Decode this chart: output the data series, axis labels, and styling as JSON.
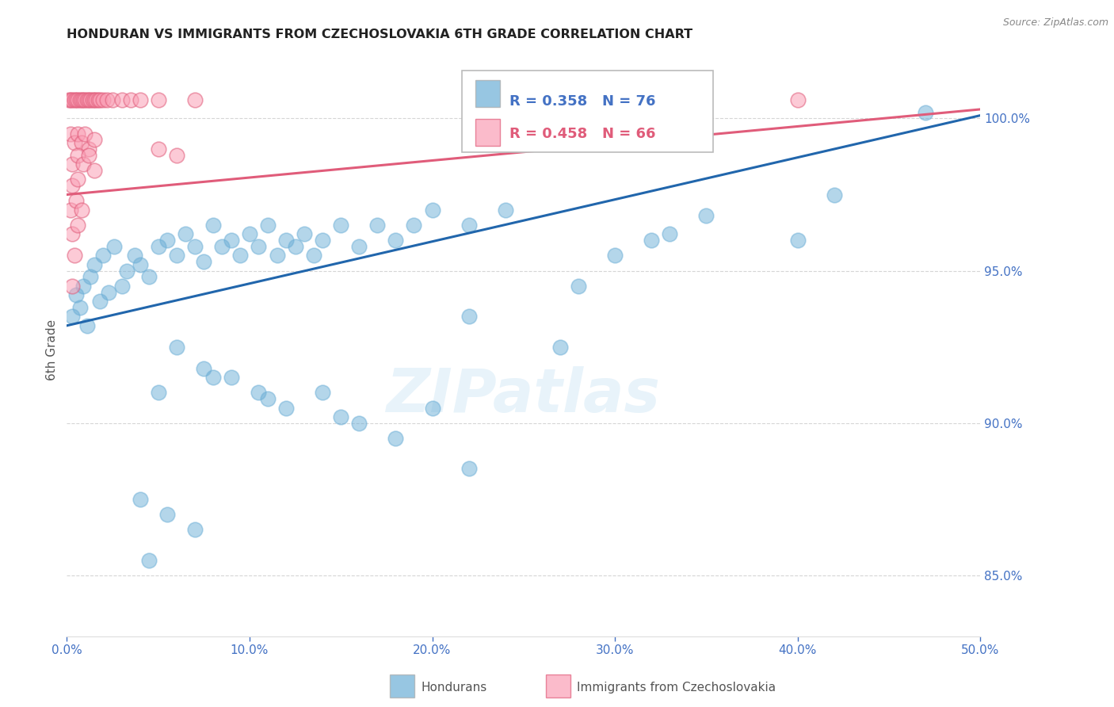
{
  "title": "HONDURAN VS IMMIGRANTS FROM CZECHOSLOVAKIA 6TH GRADE CORRELATION CHART",
  "source": "Source: ZipAtlas.com",
  "ylabel": "6th Grade",
  "watermark": "ZIPatlas",
  "legend_blue_label": "Hondurans",
  "legend_pink_label": "Immigrants from Czechoslovakia",
  "blue_R": 0.358,
  "blue_N": 76,
  "pink_R": 0.458,
  "pink_N": 66,
  "xmin": 0.0,
  "xmax": 50.0,
  "ymin": 83.0,
  "ymax": 101.8,
  "yticks": [
    85.0,
    90.0,
    95.0,
    100.0
  ],
  "xticks": [
    0.0,
    10.0,
    20.0,
    30.0,
    40.0,
    50.0
  ],
  "blue_trend_x": [
    0.0,
    50.0
  ],
  "blue_trend_y": [
    93.2,
    100.1
  ],
  "pink_trend_x": [
    0.0,
    50.0
  ],
  "pink_trend_y": [
    97.5,
    100.3
  ],
  "blue_color": "#6baed6",
  "pink_color": "#fa9fb5",
  "blue_line_color": "#2166ac",
  "pink_line_color": "#e05c7a",
  "blue_dots": [
    [
      0.3,
      93.5
    ],
    [
      0.5,
      94.2
    ],
    [
      0.7,
      93.8
    ],
    [
      0.9,
      94.5
    ],
    [
      1.1,
      93.2
    ],
    [
      1.3,
      94.8
    ],
    [
      1.5,
      95.2
    ],
    [
      1.8,
      94.0
    ],
    [
      2.0,
      95.5
    ],
    [
      2.3,
      94.3
    ],
    [
      2.6,
      95.8
    ],
    [
      3.0,
      94.5
    ],
    [
      3.3,
      95.0
    ],
    [
      3.7,
      95.5
    ],
    [
      4.0,
      95.2
    ],
    [
      4.5,
      94.8
    ],
    [
      5.0,
      95.8
    ],
    [
      5.5,
      96.0
    ],
    [
      6.0,
      95.5
    ],
    [
      6.5,
      96.2
    ],
    [
      7.0,
      95.8
    ],
    [
      7.5,
      95.3
    ],
    [
      8.0,
      96.5
    ],
    [
      8.5,
      95.8
    ],
    [
      9.0,
      96.0
    ],
    [
      9.5,
      95.5
    ],
    [
      10.0,
      96.2
    ],
    [
      10.5,
      95.8
    ],
    [
      11.0,
      96.5
    ],
    [
      11.5,
      95.5
    ],
    [
      12.0,
      96.0
    ],
    [
      12.5,
      95.8
    ],
    [
      13.0,
      96.2
    ],
    [
      13.5,
      95.5
    ],
    [
      14.0,
      96.0
    ],
    [
      15.0,
      96.5
    ],
    [
      16.0,
      95.8
    ],
    [
      17.0,
      96.5
    ],
    [
      18.0,
      96.0
    ],
    [
      19.0,
      96.5
    ],
    [
      20.0,
      97.0
    ],
    [
      22.0,
      96.5
    ],
    [
      24.0,
      97.0
    ],
    [
      6.0,
      92.5
    ],
    [
      7.5,
      91.8
    ],
    [
      9.0,
      91.5
    ],
    [
      10.5,
      91.0
    ],
    [
      12.0,
      90.5
    ],
    [
      14.0,
      91.0
    ],
    [
      16.0,
      90.0
    ],
    [
      18.0,
      89.5
    ],
    [
      20.0,
      90.5
    ],
    [
      22.0,
      88.5
    ],
    [
      5.0,
      91.0
    ],
    [
      8.0,
      91.5
    ],
    [
      11.0,
      90.8
    ],
    [
      15.0,
      90.2
    ],
    [
      4.0,
      87.5
    ],
    [
      5.5,
      87.0
    ],
    [
      7.0,
      86.5
    ],
    [
      4.5,
      85.5
    ],
    [
      22.0,
      93.5
    ],
    [
      27.0,
      92.5
    ],
    [
      30.0,
      95.5
    ],
    [
      32.0,
      96.0
    ],
    [
      35.0,
      96.8
    ],
    [
      40.0,
      96.0
    ],
    [
      42.0,
      97.5
    ],
    [
      47.0,
      100.2
    ],
    [
      28.0,
      94.5
    ],
    [
      33.0,
      96.2
    ]
  ],
  "pink_dots": [
    [
      0.1,
      100.6
    ],
    [
      0.2,
      100.6
    ],
    [
      0.3,
      100.6
    ],
    [
      0.4,
      100.6
    ],
    [
      0.5,
      100.6
    ],
    [
      0.6,
      100.6
    ],
    [
      0.7,
      100.6
    ],
    [
      0.8,
      100.6
    ],
    [
      0.9,
      100.6
    ],
    [
      1.0,
      100.6
    ],
    [
      1.1,
      100.6
    ],
    [
      1.2,
      100.6
    ],
    [
      1.3,
      100.6
    ],
    [
      1.4,
      100.6
    ],
    [
      1.5,
      100.6
    ],
    [
      1.6,
      100.6
    ],
    [
      1.7,
      100.6
    ],
    [
      1.8,
      100.6
    ],
    [
      2.0,
      100.6
    ],
    [
      2.2,
      100.6
    ],
    [
      2.5,
      100.6
    ],
    [
      3.0,
      100.6
    ],
    [
      3.5,
      100.6
    ],
    [
      4.0,
      100.6
    ],
    [
      5.0,
      100.6
    ],
    [
      0.2,
      99.5
    ],
    [
      0.4,
      99.2
    ],
    [
      0.6,
      99.5
    ],
    [
      0.8,
      99.2
    ],
    [
      1.0,
      99.5
    ],
    [
      1.2,
      99.0
    ],
    [
      1.5,
      99.3
    ],
    [
      0.3,
      98.5
    ],
    [
      0.6,
      98.8
    ],
    [
      0.9,
      98.5
    ],
    [
      1.2,
      98.8
    ],
    [
      1.5,
      98.3
    ],
    [
      0.3,
      97.8
    ],
    [
      0.6,
      98.0
    ],
    [
      0.2,
      97.0
    ],
    [
      0.5,
      97.3
    ],
    [
      0.8,
      97.0
    ],
    [
      0.3,
      96.2
    ],
    [
      0.6,
      96.5
    ],
    [
      0.4,
      95.5
    ],
    [
      0.3,
      94.5
    ],
    [
      7.0,
      100.6
    ],
    [
      30.0,
      100.6
    ],
    [
      40.0,
      100.6
    ],
    [
      5.0,
      99.0
    ],
    [
      6.0,
      98.8
    ]
  ],
  "background_color": "#ffffff",
  "grid_color": "#cccccc",
  "title_color": "#222222",
  "axis_color": "#4472c4",
  "tick_color": "#4472c4"
}
